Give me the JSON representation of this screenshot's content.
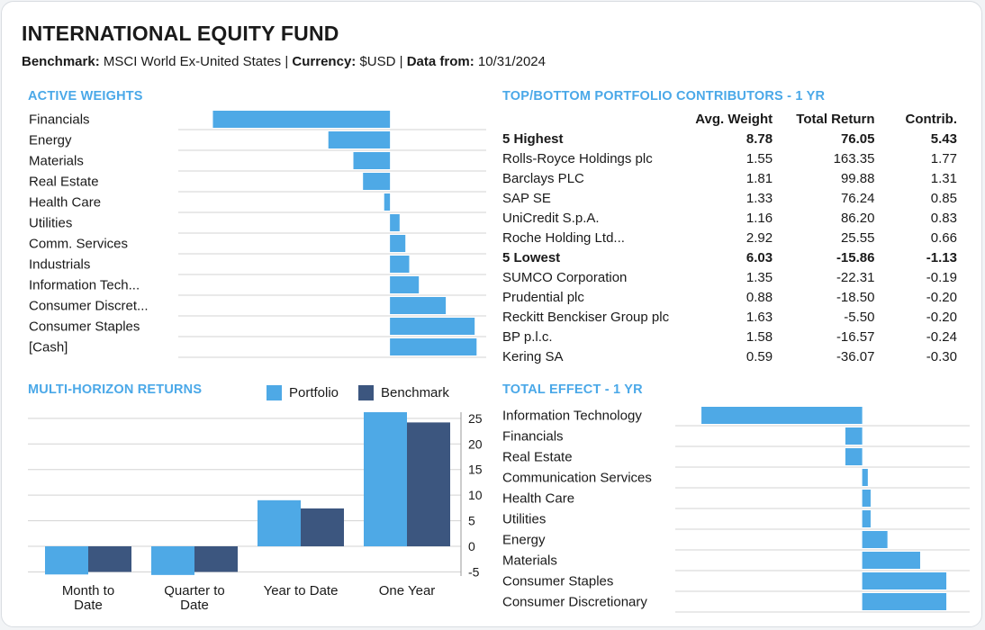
{
  "header": {
    "title": "INTERNATIONAL EQUITY FUND",
    "benchmark_label": "Benchmark:",
    "benchmark_value": "MSCI World Ex-United States",
    "currency_label": "Currency:",
    "currency_value": "$USD",
    "data_label": "Data from:",
    "data_value": "10/31/2024",
    "separator": "|"
  },
  "colors": {
    "portfolio": "#4ea9e6",
    "benchmark": "#3c567f",
    "accent": "#4aa8e8",
    "grid": "#d3d3d3"
  },
  "active_weights": {
    "title": "ACTIVE WEIGHTS",
    "chart_data": {
      "type": "bar",
      "orientation": "horizontal",
      "categories": [
        "Financials",
        "Energy",
        "Materials",
        "Real Estate",
        "Health Care",
        "Utilities",
        "Comm. Services",
        "Industrials",
        "Information Tech...",
        "Consumer Discret...",
        "Consumer Staples",
        "[Cash]"
      ],
      "values": [
        -4.6,
        -1.6,
        -0.95,
        -0.7,
        -0.15,
        0.25,
        0.4,
        0.5,
        0.75,
        1.45,
        2.2,
        2.25
      ],
      "xlim": [
        -5.5,
        2.5
      ]
    }
  },
  "contributors": {
    "title": "TOP/BOTTOM PORTFOLIO CONTRIBUTORS - 1 YR",
    "columns": [
      "Avg. Weight",
      "Total Return",
      "Contrib."
    ],
    "rows": [
      {
        "name": "5 Highest",
        "w": "8.78",
        "r": "76.05",
        "c": "5.43",
        "group": true
      },
      {
        "name": "Rolls-Royce Holdings plc",
        "w": "1.55",
        "r": "163.35",
        "c": "1.77",
        "group": false
      },
      {
        "name": "Barclays PLC",
        "w": "1.81",
        "r": "99.88",
        "c": "1.31",
        "group": false
      },
      {
        "name": "SAP SE",
        "w": "1.33",
        "r": "76.24",
        "c": "0.85",
        "group": false
      },
      {
        "name": "UniCredit S.p.A.",
        "w": "1.16",
        "r": "86.20",
        "c": "0.83",
        "group": false
      },
      {
        "name": "Roche Holding Ltd...",
        "w": "2.92",
        "r": "25.55",
        "c": "0.66",
        "group": false
      },
      {
        "name": "5 Lowest",
        "w": "6.03",
        "r": "-15.86",
        "c": "-1.13",
        "group": true
      },
      {
        "name": "SUMCO Corporation",
        "w": "1.35",
        "r": "-22.31",
        "c": "-0.19",
        "group": false
      },
      {
        "name": "Prudential plc",
        "w": "0.88",
        "r": "-18.50",
        "c": "-0.20",
        "group": false
      },
      {
        "name": "Reckitt Benckiser Group plc",
        "w": "1.63",
        "r": "-5.50",
        "c": "-0.20",
        "group": false
      },
      {
        "name": "BP p.l.c.",
        "w": "1.58",
        "r": "-16.57",
        "c": "-0.24",
        "group": false
      },
      {
        "name": "Kering SA",
        "w": "0.59",
        "r": "-36.07",
        "c": "-0.30",
        "group": false
      }
    ]
  },
  "returns": {
    "title": "MULTI-HORIZON RETURNS",
    "chart_data": {
      "type": "bar",
      "categories": [
        [
          "Month to",
          "Date"
        ],
        [
          "Quarter to",
          "Date"
        ],
        [
          "Year to Date"
        ],
        [
          "One Year"
        ]
      ],
      "series": [
        {
          "name": "Portfolio",
          "values": [
            -5.5,
            -5.6,
            9,
            26.2
          ]
        },
        {
          "name": "Benchmark",
          "values": [
            -5,
            -5,
            7.4,
            24.2
          ]
        }
      ],
      "yticks": [
        -5,
        0,
        5,
        10,
        15,
        20,
        25
      ],
      "ylim": [
        -5.8,
        26.2
      ]
    }
  },
  "total_effect": {
    "title": "TOTAL EFFECT - 1 YR",
    "chart_data": {
      "type": "bar",
      "orientation": "horizontal",
      "categories": [
        "Information Technology",
        "Financials",
        "Real Estate",
        "Communication Services",
        "Health Care",
        "Utilities",
        "Energy",
        "Materials",
        "Consumer Staples",
        "Consumer Discretionary"
      ],
      "values": [
        -1.72,
        -0.18,
        -0.18,
        0.06,
        0.09,
        0.09,
        0.27,
        0.62,
        0.9,
        0.9
      ],
      "xlim": [
        -2.0,
        1.15
      ]
    }
  }
}
